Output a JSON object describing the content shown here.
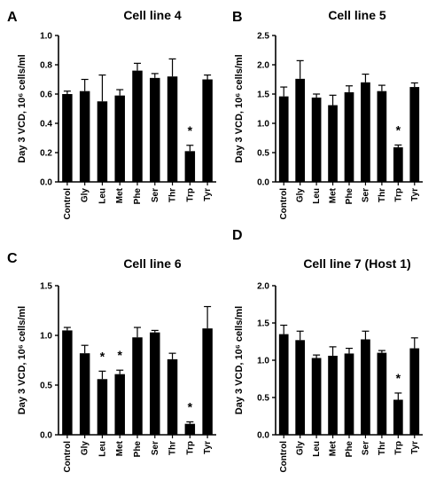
{
  "chart_data": [
    {
      "panel": "A",
      "type": "bar",
      "title": "Cell line 4",
      "ylabel": "Day 3 VCD, 10⁶ cells/ml",
      "ylim": [
        0,
        1.0
      ],
      "yticks": [
        "0.0",
        "0.2",
        "0.4",
        "0.6",
        "0.8",
        "1.0"
      ],
      "ytick_values": [
        0,
        0.2,
        0.4,
        0.6,
        0.8,
        1.0
      ],
      "categories": [
        "Control",
        "Gly",
        "Leu",
        "Met",
        "Phe",
        "Ser",
        "Thr",
        "Trp",
        "Tyr"
      ],
      "values": [
        0.6,
        0.62,
        0.55,
        0.59,
        0.76,
        0.71,
        0.72,
        0.21,
        0.7
      ],
      "errors": [
        0.02,
        0.08,
        0.18,
        0.04,
        0.05,
        0.03,
        0.12,
        0.04,
        0.03
      ],
      "significant": [
        false,
        false,
        false,
        false,
        false,
        false,
        false,
        true,
        false
      ],
      "star": "*"
    },
    {
      "panel": "B",
      "type": "bar",
      "title": "Cell line 5",
      "ylabel": "Day 3 VCD, 10⁶ cells/ml",
      "ylim": [
        0,
        2.5
      ],
      "yticks": [
        "0.0",
        "0.5",
        "1.0",
        "1.5",
        "2.0",
        "2.5"
      ],
      "ytick_values": [
        0,
        0.5,
        1.0,
        1.5,
        2.0,
        2.5
      ],
      "categories": [
        "Control",
        "Gly",
        "Leu",
        "Met",
        "Phe",
        "Ser",
        "Thr",
        "Trp",
        "Tyr"
      ],
      "values": [
        1.46,
        1.76,
        1.44,
        1.31,
        1.53,
        1.7,
        1.55,
        0.59,
        1.62
      ],
      "errors": [
        0.16,
        0.31,
        0.06,
        0.17,
        0.11,
        0.14,
        0.1,
        0.04,
        0.07
      ],
      "significant": [
        false,
        false,
        false,
        false,
        false,
        false,
        false,
        true,
        false
      ],
      "star": "*"
    },
    {
      "panel": "C",
      "type": "bar",
      "title": "Cell line 6",
      "ylabel": "Day 3 VCD, 10⁶ cells/ml",
      "ylim": [
        0,
        1.5
      ],
      "yticks": [
        "0.0",
        "0.5",
        "1.0",
        "1.5"
      ],
      "ytick_values": [
        0,
        0.5,
        1.0,
        1.5
      ],
      "categories": [
        "Control",
        "Gly",
        "Leu",
        "Met",
        "Phe",
        "Ser",
        "Thr",
        "Trp",
        "Tyr"
      ],
      "values": [
        1.05,
        0.82,
        0.56,
        0.61,
        0.98,
        1.03,
        0.76,
        0.11,
        1.07
      ],
      "errors": [
        0.03,
        0.08,
        0.08,
        0.04,
        0.1,
        0.02,
        0.06,
        0.02,
        0.22
      ],
      "significant": [
        false,
        false,
        true,
        true,
        false,
        false,
        false,
        true,
        false
      ],
      "star": "*"
    },
    {
      "panel": "D",
      "type": "bar",
      "title": "Cell line 7 (Host 1)",
      "ylabel": "Day 3 VCD, 10⁶ cells/ml",
      "ylim": [
        0,
        2.0
      ],
      "yticks": [
        "0.0",
        "0.5",
        "1.0",
        "1.5",
        "2.0"
      ],
      "ytick_values": [
        0,
        0.5,
        1.0,
        1.5,
        2.0
      ],
      "categories": [
        "Control",
        "Gly",
        "Leu",
        "Met",
        "Phe",
        "Ser",
        "Thr",
        "Trp",
        "Tyr"
      ],
      "values": [
        1.35,
        1.27,
        1.03,
        1.06,
        1.09,
        1.28,
        1.1,
        0.47,
        1.16
      ],
      "errors": [
        0.12,
        0.12,
        0.04,
        0.12,
        0.07,
        0.11,
        0.03,
        0.09,
        0.14
      ],
      "significant": [
        false,
        false,
        false,
        false,
        false,
        false,
        false,
        true,
        false
      ],
      "star": "*"
    }
  ],
  "colors": {
    "bar": "#000000",
    "axis": "#000000",
    "background": "#ffffff"
  }
}
